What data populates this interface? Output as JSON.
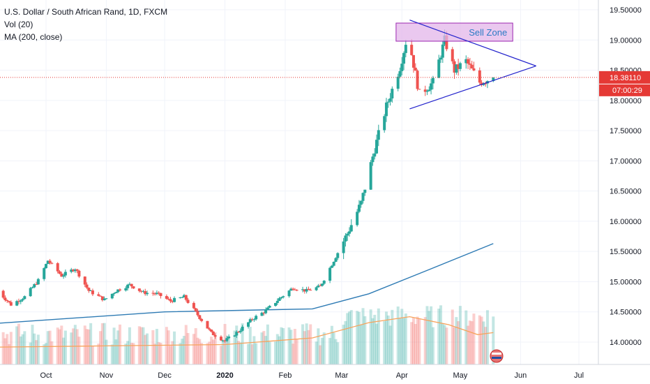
{
  "legend": {
    "title": "U.S. Dollar / South African Rand, 1D, FXCM",
    "volume": "Vol (20)",
    "ma": "MA (200, close)"
  },
  "annotation": {
    "sell_zone": "Sell Zone"
  },
  "price_tag": {
    "price": "18.38110",
    "countdown": "07:00:29"
  },
  "colors": {
    "up": "#26a69a",
    "down": "#ef5350",
    "ma200": "#2e7bb4",
    "vol_ma": "#f7a35c",
    "triangle": "#2222cc",
    "zone_fill": "#e3b6ea",
    "zone_stroke": "#9c27b0",
    "zone_text": "#2b7bc5",
    "price_line": "#e53935"
  },
  "chart_data": {
    "type": "candlestick",
    "title": "U.S. Dollar / South African Rand, 1D, FXCM",
    "y_tick_labels": [
      "19.50000",
      "19.00000",
      "18.50000",
      "18.00000",
      "17.50000",
      "17.00000",
      "16.50000",
      "16.00000",
      "15.50000",
      "15.00000",
      "14.50000",
      "14.00000"
    ],
    "x_tick_labels": [
      "Oct",
      "Nov",
      "Dec",
      "2020",
      "Feb",
      "Mar",
      "Apr",
      "May",
      "Jun",
      "Jul"
    ],
    "ylim": [
      13.72,
      19.62
    ],
    "last_price": 18.3811,
    "close_series": [
      {
        "x": "2019-09-06",
        "y": 14.85
      },
      {
        "x": "2019-09-13",
        "y": 14.62
      },
      {
        "x": "2019-09-20",
        "y": 14.75
      },
      {
        "x": "2019-09-27",
        "y": 15.02
      },
      {
        "x": "2019-10-02",
        "y": 15.35
      },
      {
        "x": "2019-10-09",
        "y": 15.1
      },
      {
        "x": "2019-10-16",
        "y": 15.22
      },
      {
        "x": "2019-10-23",
        "y": 14.85
      },
      {
        "x": "2019-10-31",
        "y": 14.7
      },
      {
        "x": "2019-11-06",
        "y": 14.85
      },
      {
        "x": "2019-11-13",
        "y": 14.95
      },
      {
        "x": "2019-11-20",
        "y": 14.82
      },
      {
        "x": "2019-11-27",
        "y": 14.8
      },
      {
        "x": "2019-12-04",
        "y": 14.68
      },
      {
        "x": "2019-12-11",
        "y": 14.75
      },
      {
        "x": "2019-12-18",
        "y": 14.45
      },
      {
        "x": "2019-12-25",
        "y": 14.15
      },
      {
        "x": "2020-01-01",
        "y": 14.02
      },
      {
        "x": "2020-01-08",
        "y": 14.18
      },
      {
        "x": "2020-01-15",
        "y": 14.38
      },
      {
        "x": "2020-01-22",
        "y": 14.52
      },
      {
        "x": "2020-01-29",
        "y": 14.72
      },
      {
        "x": "2020-02-05",
        "y": 14.9
      },
      {
        "x": "2020-02-12",
        "y": 14.85
      },
      {
        "x": "2020-02-19",
        "y": 14.92
      },
      {
        "x": "2020-02-26",
        "y": 15.35
      },
      {
        "x": "2020-03-04",
        "y": 15.8
      },
      {
        "x": "2020-03-11",
        "y": 16.3
      },
      {
        "x": "2020-03-18",
        "y": 17.2
      },
      {
        "x": "2020-03-24",
        "y": 17.9
      },
      {
        "x": "2020-03-31",
        "y": 18.55
      },
      {
        "x": "2020-04-04",
        "y": 19.1
      },
      {
        "x": "2020-04-10",
        "y": 18.1
      },
      {
        "x": "2020-04-17",
        "y": 18.3
      },
      {
        "x": "2020-04-23",
        "y": 19.0
      },
      {
        "x": "2020-04-28",
        "y": 18.5
      },
      {
        "x": "2020-05-04",
        "y": 18.65
      },
      {
        "x": "2020-05-11",
        "y": 18.3
      },
      {
        "x": "2020-05-18",
        "y": 18.38
      }
    ],
    "ma200": [
      {
        "x": "2019-09-01",
        "y": 14.3
      },
      {
        "x": "2019-12-01",
        "y": 14.5
      },
      {
        "x": "2020-02-15",
        "y": 14.55
      },
      {
        "x": "2020-03-15",
        "y": 14.8
      },
      {
        "x": "2020-04-15",
        "y": 15.2
      },
      {
        "x": "2020-05-18",
        "y": 15.63
      }
    ],
    "volume_ma": [
      {
        "x": "2019-09-01",
        "y": 0.26
      },
      {
        "x": "2019-11-01",
        "y": 0.28
      },
      {
        "x": "2020-01-01",
        "y": 0.3
      },
      {
        "x": "2020-02-15",
        "y": 0.4
      },
      {
        "x": "2020-03-15",
        "y": 0.63
      },
      {
        "x": "2020-04-05",
        "y": 0.72
      },
      {
        "x": "2020-04-25",
        "y": 0.6
      },
      {
        "x": "2020-05-10",
        "y": 0.45
      },
      {
        "x": "2020-05-18",
        "y": 0.48
      }
    ],
    "sell_zone": {
      "price_low": 18.98,
      "price_high": 19.28,
      "date_start": "2020-03-29",
      "date_end": "2020-05-28"
    },
    "triangle": [
      {
        "x": "2020-04-05",
        "y": 19.33
      },
      {
        "x": "2020-06-09",
        "y": 18.57
      },
      {
        "x": "2020-04-05",
        "y": 17.86
      }
    ]
  }
}
